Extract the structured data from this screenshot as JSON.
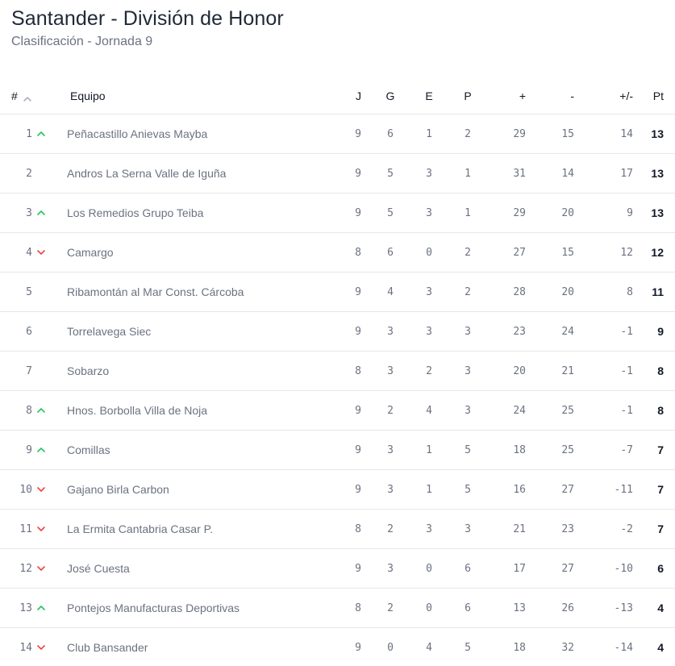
{
  "header": {
    "title": "Santander - División de Honor",
    "subtitle": "Clasificación - Jornada 9"
  },
  "table": {
    "columns": {
      "rank": "#",
      "team": "Equipo",
      "j": "J",
      "g": "G",
      "e": "E",
      "p": "P",
      "gf": "+",
      "ga": "-",
      "gd": "+/-",
      "pt": "Pt"
    },
    "colors": {
      "up": "#22c55e",
      "down": "#ef4444"
    },
    "rows": [
      {
        "rank": "1",
        "trend": "up",
        "team": "Peñacastillo Anievas Mayba",
        "j": "9",
        "g": "6",
        "e": "1",
        "p": "2",
        "gf": "29",
        "ga": "15",
        "gd": "14",
        "pt": "13"
      },
      {
        "rank": "2",
        "trend": "none",
        "team": "Andros La Serna Valle de Iguña",
        "j": "9",
        "g": "5",
        "e": "3",
        "p": "1",
        "gf": "31",
        "ga": "14",
        "gd": "17",
        "pt": "13"
      },
      {
        "rank": "3",
        "trend": "up",
        "team": "Los Remedios Grupo Teiba",
        "j": "9",
        "g": "5",
        "e": "3",
        "p": "1",
        "gf": "29",
        "ga": "20",
        "gd": "9",
        "pt": "13"
      },
      {
        "rank": "4",
        "trend": "down",
        "team": "Camargo",
        "j": "8",
        "g": "6",
        "e": "0",
        "p": "2",
        "gf": "27",
        "ga": "15",
        "gd": "12",
        "pt": "12"
      },
      {
        "rank": "5",
        "trend": "none",
        "team": "Ribamontán al Mar Const. Cárcoba",
        "j": "9",
        "g": "4",
        "e": "3",
        "p": "2",
        "gf": "28",
        "ga": "20",
        "gd": "8",
        "pt": "11"
      },
      {
        "rank": "6",
        "trend": "none",
        "team": "Torrelavega Siec",
        "j": "9",
        "g": "3",
        "e": "3",
        "p": "3",
        "gf": "23",
        "ga": "24",
        "gd": "-1",
        "pt": "9"
      },
      {
        "rank": "7",
        "trend": "none",
        "team": "Sobarzo",
        "j": "8",
        "g": "3",
        "e": "2",
        "p": "3",
        "gf": "20",
        "ga": "21",
        "gd": "-1",
        "pt": "8"
      },
      {
        "rank": "8",
        "trend": "up",
        "team": "Hnos. Borbolla Villa de Noja",
        "j": "9",
        "g": "2",
        "e": "4",
        "p": "3",
        "gf": "24",
        "ga": "25",
        "gd": "-1",
        "pt": "8"
      },
      {
        "rank": "9",
        "trend": "up",
        "team": "Comillas",
        "j": "9",
        "g": "3",
        "e": "1",
        "p": "5",
        "gf": "18",
        "ga": "25",
        "gd": "-7",
        "pt": "7"
      },
      {
        "rank": "10",
        "trend": "down",
        "team": "Gajano Birla Carbon",
        "j": "9",
        "g": "3",
        "e": "1",
        "p": "5",
        "gf": "16",
        "ga": "27",
        "gd": "-11",
        "pt": "7"
      },
      {
        "rank": "11",
        "trend": "down",
        "team": "La Ermita Cantabria Casar P.",
        "j": "8",
        "g": "2",
        "e": "3",
        "p": "3",
        "gf": "21",
        "ga": "23",
        "gd": "-2",
        "pt": "7"
      },
      {
        "rank": "12",
        "trend": "down",
        "team": "José Cuesta",
        "j": "9",
        "g": "3",
        "e": "0",
        "p": "6",
        "gf": "17",
        "ga": "27",
        "gd": "-10",
        "pt": "6"
      },
      {
        "rank": "13",
        "trend": "up",
        "team": "Pontejos Manufacturas Deportivas",
        "j": "8",
        "g": "2",
        "e": "0",
        "p": "6",
        "gf": "13",
        "ga": "26",
        "gd": "-13",
        "pt": "4"
      },
      {
        "rank": "14",
        "trend": "down",
        "team": "Club Bansander",
        "j": "9",
        "g": "0",
        "e": "4",
        "p": "5",
        "gf": "18",
        "ga": "32",
        "gd": "-14",
        "pt": "4"
      }
    ]
  }
}
